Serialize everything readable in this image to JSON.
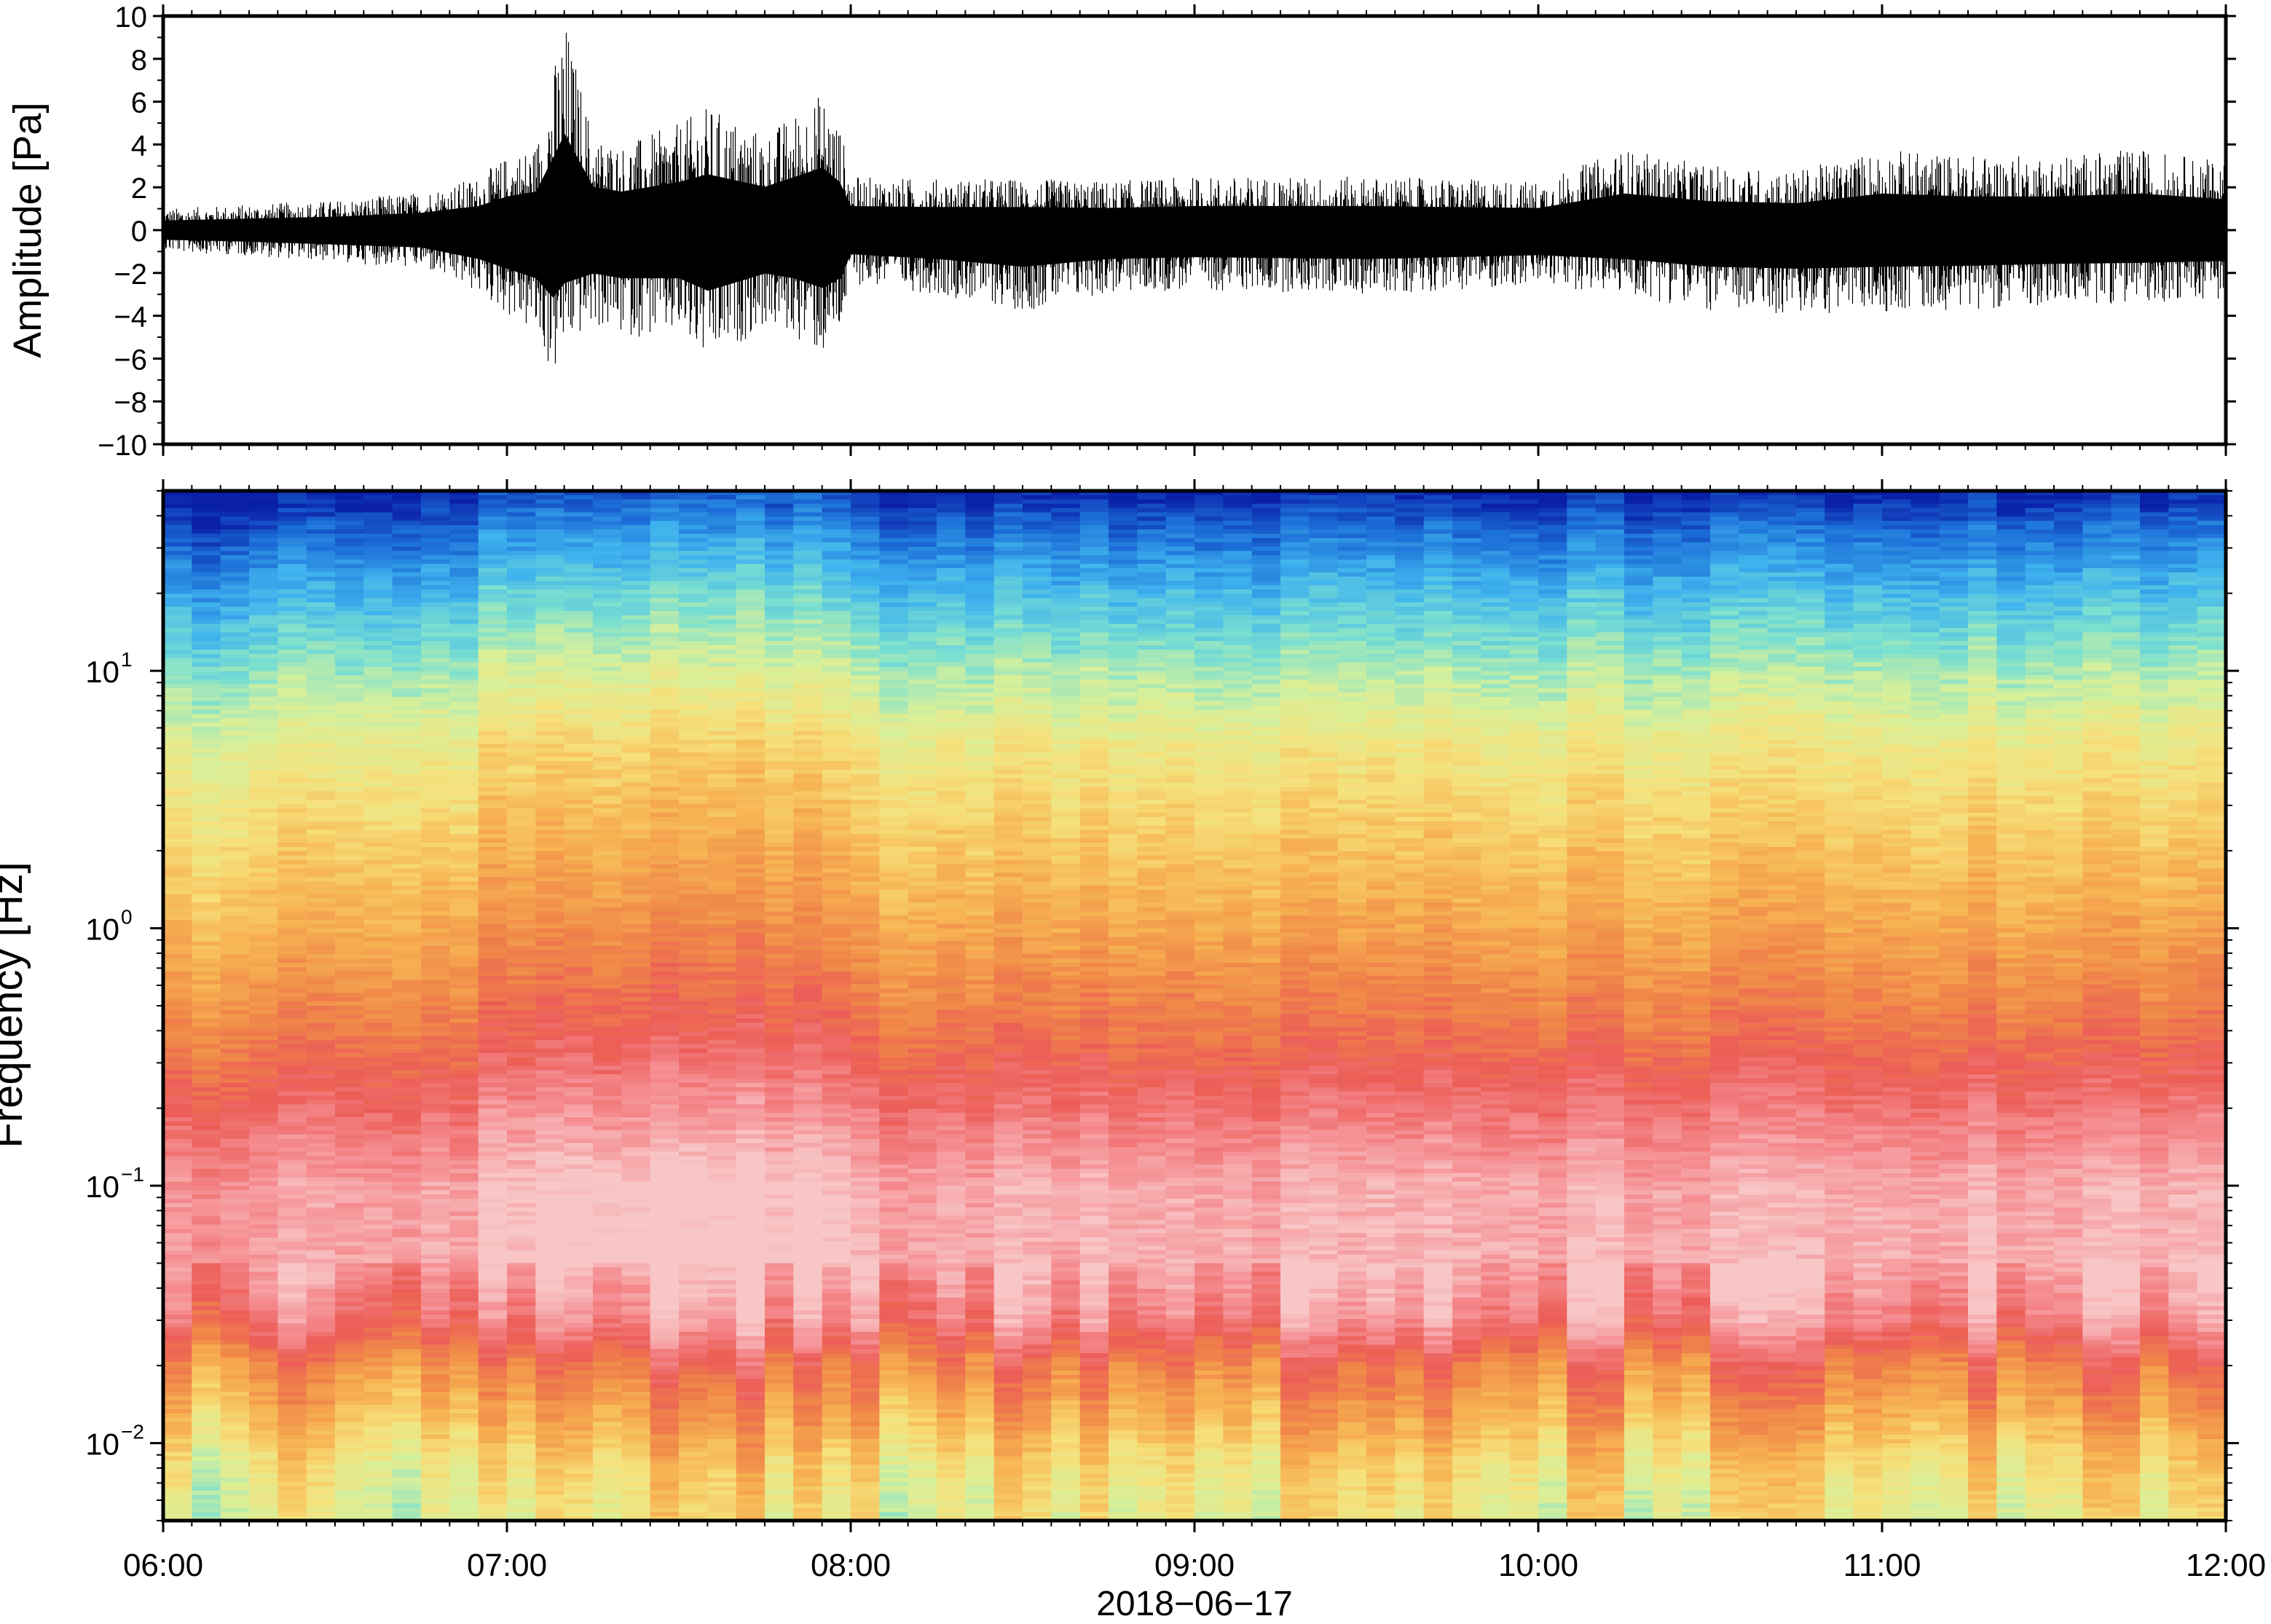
{
  "chart_data": [
    {
      "type": "line",
      "panel": "waveform",
      "xlabel": "",
      "ylabel": "Amplitude [Pa]",
      "ylim": [
        -10,
        10
      ],
      "yticks": [
        {
          "value": 10,
          "label": "10"
        },
        {
          "value": 8,
          "label": "8"
        },
        {
          "value": 6,
          "label": "6"
        },
        {
          "value": 4,
          "label": "4"
        },
        {
          "value": 2,
          "label": "2"
        },
        {
          "value": 0,
          "label": "0"
        },
        {
          "value": -2,
          "label": "−2"
        },
        {
          "value": -4,
          "label": "−4"
        },
        {
          "value": -6,
          "label": "−6"
        },
        {
          "value": -8,
          "label": "−8"
        },
        {
          "value": -10,
          "label": "−10"
        }
      ],
      "xlim": [
        "06:00",
        "12:00"
      ],
      "grid": false,
      "line_color": "#000000",
      "envelope": {
        "x": [
          "06:00",
          "06:15",
          "06:30",
          "06:45",
          "06:55",
          "07:00",
          "07:05",
          "07:08",
          "07:10",
          "07:15",
          "07:20",
          "07:30",
          "07:35",
          "07:45",
          "07:50",
          "07:55",
          "07:58",
          "08:00",
          "08:15",
          "08:30",
          "08:45",
          "09:00",
          "09:30",
          "10:00",
          "10:15",
          "10:30",
          "10:45",
          "11:00",
          "11:15",
          "11:30",
          "11:45",
          "12:00"
        ],
        "max": [
          1.0,
          1.2,
          1.4,
          1.8,
          2.5,
          3.5,
          4.0,
          7.5,
          10.0,
          4.5,
          4.0,
          5.0,
          5.8,
          4.5,
          5.5,
          6.5,
          5.0,
          2.5,
          2.4,
          2.4,
          2.3,
          2.5,
          2.5,
          2.3,
          3.8,
          3.0,
          2.8,
          3.8,
          3.5,
          3.5,
          3.8,
          3.2
        ],
        "min": [
          -1.0,
          -1.2,
          -1.5,
          -1.8,
          -3.0,
          -4.0,
          -5.0,
          -7.0,
          -5.5,
          -4.5,
          -5.0,
          -5.0,
          -6.3,
          -4.5,
          -5.0,
          -6.0,
          -5.0,
          -2.5,
          -3.0,
          -3.8,
          -3.0,
          -2.8,
          -3.0,
          -2.6,
          -3.0,
          -3.8,
          -4.0,
          -3.8,
          -3.7,
          -3.5,
          -3.4,
          -3.2
        ]
      }
    },
    {
      "type": "heatmap",
      "panel": "spectrogram",
      "xlabel": "2018−06−17",
      "ylabel": "Frequency [Hz]",
      "yscale": "log",
      "ylim": [
        0.005,
        50
      ],
      "yticks": [
        {
          "value": 10,
          "base": "10",
          "exp": "1"
        },
        {
          "value": 1,
          "base": "10",
          "exp": "0"
        },
        {
          "value": 0.1,
          "base": "10",
          "exp": "−1"
        },
        {
          "value": 0.01,
          "base": "10",
          "exp": "−2"
        }
      ],
      "xticks": [
        "06:00",
        "07:00",
        "08:00",
        "09:00",
        "10:00",
        "11:00",
        "12:00"
      ],
      "xlim": [
        "06:00",
        "12:00"
      ],
      "grid": false,
      "colormap": [
        "#0a1fa8",
        "#1c6fd8",
        "#3fb3ee",
        "#7be0d0",
        "#d8f09a",
        "#f6e07a",
        "#f7b453",
        "#f08848",
        "#ec5d57",
        "#f58c90",
        "#f8c6c6"
      ],
      "band_profile": {
        "frequency_hz": [
          0.005,
          0.008,
          0.012,
          0.02,
          0.03,
          0.05,
          0.1,
          0.2,
          0.4,
          1,
          2,
          5,
          10,
          20,
          35,
          50
        ],
        "level": [
          0.45,
          0.5,
          0.6,
          0.72,
          0.88,
          0.96,
          0.95,
          0.85,
          0.74,
          0.63,
          0.56,
          0.47,
          0.35,
          0.22,
          0.1,
          0.0
        ]
      }
    }
  ]
}
